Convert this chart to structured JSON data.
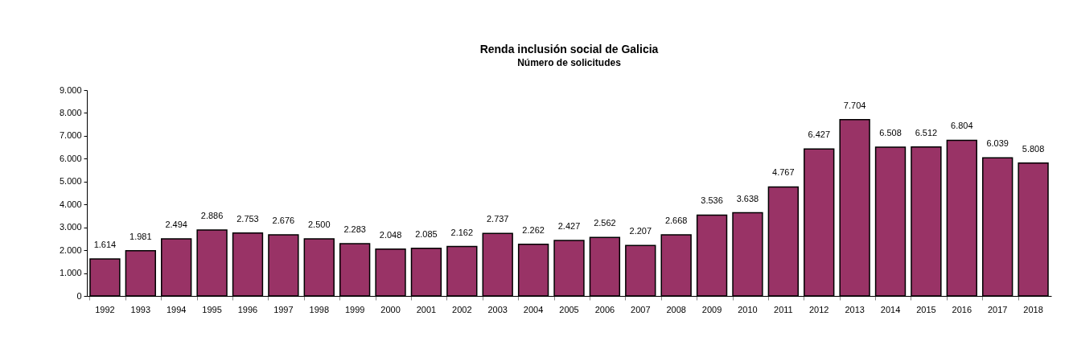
{
  "chart_data": {
    "type": "bar",
    "title": "Renda inclusión social de Galicia",
    "subtitle": "Número de solicitudes",
    "categories": [
      "1992",
      "1993",
      "1994",
      "1995",
      "1996",
      "1997",
      "1998",
      "1999",
      "2000",
      "2001",
      "2002",
      "2003",
      "2004",
      "2005",
      "2006",
      "2007",
      "2008",
      "2009",
      "2010",
      "2011",
      "2012",
      "2013",
      "2014",
      "2015",
      "2016",
      "2017",
      "2018"
    ],
    "values": [
      1614,
      1981,
      2494,
      2886,
      2753,
      2676,
      2500,
      2283,
      2048,
      2085,
      2162,
      2737,
      2262,
      2427,
      2562,
      2207,
      2668,
      3536,
      3638,
      4767,
      6427,
      7704,
      6508,
      6512,
      6804,
      6039,
      5808
    ],
    "value_labels": [
      "1.614",
      "1.981",
      "2.494",
      "2.886",
      "2.753",
      "2.676",
      "2.500",
      "2.283",
      "2.048",
      "2.085",
      "2.162",
      "2.737",
      "2.262",
      "2.427",
      "2.562",
      "2.207",
      "2.668",
      "3.536",
      "3.638",
      "4.767",
      "6.427",
      "7.704",
      "6.508",
      "6.512",
      "6.804",
      "6.039",
      "5.808"
    ],
    "color": "#993366",
    "ylim": [
      0,
      9000
    ],
    "yticks": [
      0,
      {
        "value": 1000,
        "label": "1.000"
      },
      {
        "value": 2000,
        "label": "2.000"
      },
      {
        "value": 3000,
        "label": "3.000"
      },
      {
        "value": 4000,
        "label": "4.000"
      },
      {
        "value": 5000,
        "label": "5.000"
      },
      {
        "value": 6000,
        "label": "6.000"
      },
      {
        "value": 7000,
        "label": "7.000"
      },
      {
        "value": 8000,
        "label": "8.000"
      },
      {
        "value": 9000,
        "label": "9.000"
      }
    ]
  }
}
